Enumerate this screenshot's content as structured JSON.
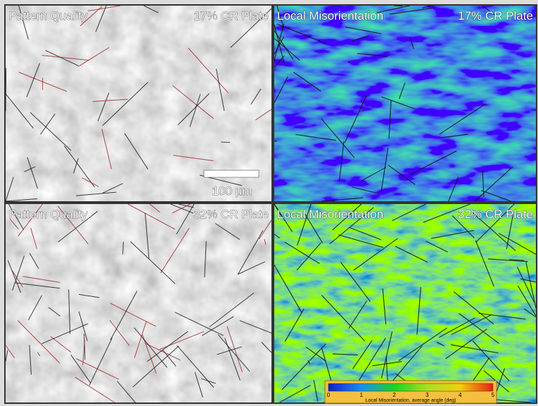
{
  "panels": [
    {
      "title": "Pattern Quality",
      "sample": "17% CR Plate"
    },
    {
      "title": "Local Misorientation",
      "sample": "17% CR Plate"
    },
    {
      "title": "Pattern Quality",
      "sample": "32% CR Plate"
    },
    {
      "title": "Local Misorientation",
      "sample": "32% CR Plate"
    }
  ],
  "scale_bar": {
    "label": "100 μm"
  },
  "colorbar": {
    "ticks": [
      "0",
      "1",
      "2",
      "3",
      "4",
      "5"
    ],
    "label": "Local Misorientation, average angle (deg)"
  }
}
